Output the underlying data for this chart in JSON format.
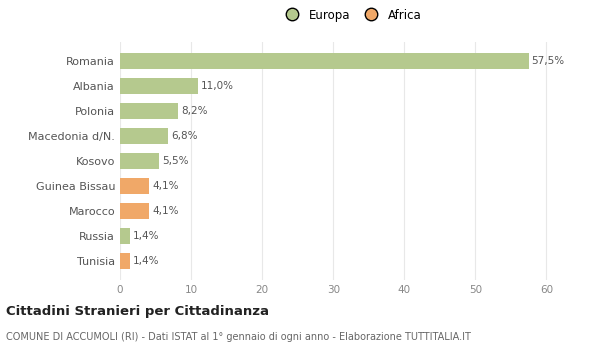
{
  "categories": [
    "Romania",
    "Albania",
    "Polonia",
    "Macedonia d/N.",
    "Kosovo",
    "Guinea Bissau",
    "Marocco",
    "Russia",
    "Tunisia"
  ],
  "values": [
    57.5,
    11.0,
    8.2,
    6.8,
    5.5,
    4.1,
    4.1,
    1.4,
    1.4
  ],
  "labels": [
    "57,5%",
    "11,0%",
    "8,2%",
    "6,8%",
    "5,5%",
    "4,1%",
    "4,1%",
    "1,4%",
    "1,4%"
  ],
  "colors": [
    "#b5c98e",
    "#b5c98e",
    "#b5c98e",
    "#b5c98e",
    "#b5c98e",
    "#f0a868",
    "#f0a868",
    "#b5c98e",
    "#f0a868"
  ],
  "legend": [
    {
      "label": "Europa",
      "color": "#b5c98e"
    },
    {
      "label": "Africa",
      "color": "#f0a868"
    }
  ],
  "xlim": [
    0,
    65
  ],
  "xticks": [
    0,
    10,
    20,
    30,
    40,
    50,
    60
  ],
  "title": "Cittadini Stranieri per Cittadinanza",
  "subtitle": "COMUNE DI ACCUMOLI (RI) - Dati ISTAT al 1° gennaio di ogni anno - Elaborazione TUTTITALIA.IT",
  "background_color": "#ffffff",
  "plot_background": "#ffffff",
  "grid_color": "#e8e8e8"
}
